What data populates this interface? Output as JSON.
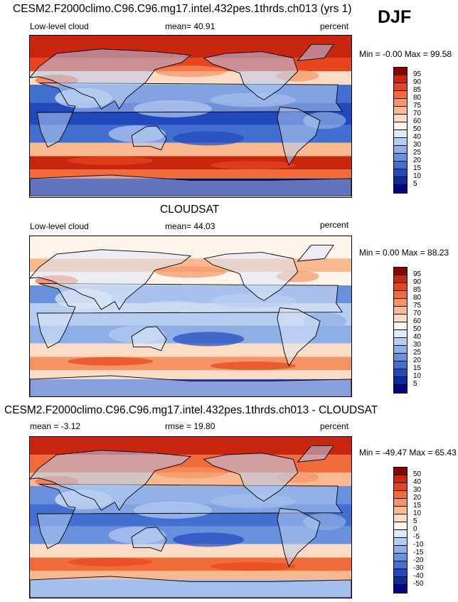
{
  "season": "DJF",
  "panels": [
    {
      "title": "CESM2.F2000climo.C96.C96.mg17.intel.432pes.1thrds.ch013 (yrs 1)",
      "left_label": "Low-level cloud",
      "stat_label": "mean=  40.91",
      "units": "percent",
      "minmax": "Min =  -0.00 Max =  99.58",
      "levels": [
        "95",
        "90",
        "85",
        "80",
        "75",
        "70",
        "60",
        "50",
        "40",
        "30",
        "25",
        "20",
        "15",
        "10",
        "5"
      ],
      "colors": [
        "#8b0000",
        "#c8260f",
        "#e8451f",
        "#f26b3a",
        "#f69463",
        "#f9b890",
        "#fcdcc4",
        "#fff4ea",
        "#dde8f8",
        "#b6ccf0",
        "#8eafe6",
        "#6890dc",
        "#436fd0",
        "#2148bc",
        "#0a2c9a",
        "#000880"
      ],
      "mean": 40.91,
      "min": -0.0,
      "max": 99.58
    },
    {
      "title": "CLOUDSAT",
      "left_label": "Low-level cloud",
      "stat_label": "mean=  44.03",
      "units": "percent",
      "minmax": "Min =   0.00 Max =  88.23",
      "levels": [
        "95",
        "90",
        "85",
        "80",
        "75",
        "70",
        "60",
        "50",
        "40",
        "30",
        "25",
        "20",
        "15",
        "10",
        "5"
      ],
      "colors": [
        "#8b0000",
        "#c8260f",
        "#e8451f",
        "#f26b3a",
        "#f69463",
        "#f9b890",
        "#fcdcc4",
        "#fff4ea",
        "#dde8f8",
        "#b6ccf0",
        "#8eafe6",
        "#6890dc",
        "#436fd0",
        "#2148bc",
        "#0a2c9a",
        "#000880"
      ],
      "mean": 44.03,
      "min": 0.0,
      "max": 88.23
    },
    {
      "title": "CESM2.F2000climo.C96.C96.mg17.intel.432pes.1thrds.ch013 - CLOUDSAT",
      "left_label": "mean =  -3.12",
      "stat_label": "rmse =  19.80",
      "units": "percent",
      "minmax": "Min = -49.47 Max =  65.43",
      "levels": [
        "50",
        "40",
        "30",
        "20",
        "15",
        "10",
        "5",
        "0",
        "-5",
        "-10",
        "-15",
        "-20",
        "-30",
        "-40",
        "-50"
      ],
      "colors": [
        "#8b0000",
        "#c8260f",
        "#e8451f",
        "#f26b3a",
        "#f69463",
        "#f9b890",
        "#fcdcc4",
        "#fff4ea",
        "#dde8f8",
        "#b6ccf0",
        "#8eafe6",
        "#6890dc",
        "#436fd0",
        "#2148bc",
        "#0a2c9a",
        "#000880"
      ],
      "mean": -3.12,
      "rmse": 19.8,
      "min": -49.47,
      "max": 65.43
    }
  ]
}
